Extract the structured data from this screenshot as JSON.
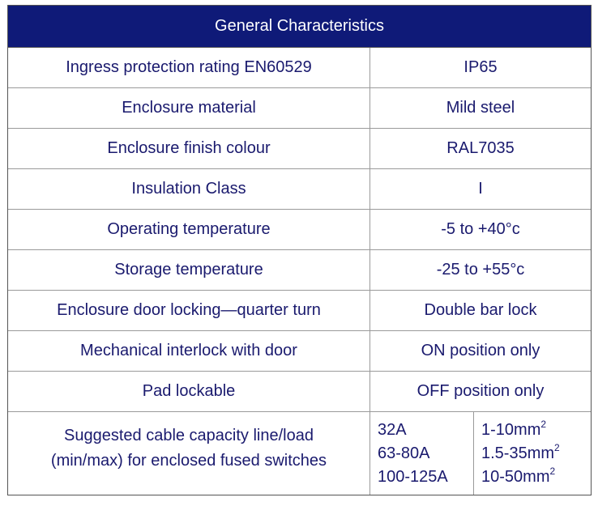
{
  "header": {
    "title": "General Characteristics"
  },
  "rows": [
    {
      "label": "Ingress protection rating EN60529",
      "value": "IP65"
    },
    {
      "label": "Enclosure material",
      "value": "Mild steel"
    },
    {
      "label": "Enclosure finish colour",
      "value": "RAL7035"
    },
    {
      "label": "Insulation Class",
      "value": "I"
    },
    {
      "label": "Operating temperature",
      "value": "-5 to +40°c"
    },
    {
      "label": "Storage temperature",
      "value": "-25 to +55°c"
    },
    {
      "label": "Enclosure door locking—quarter turn",
      "value": "Double bar lock"
    },
    {
      "label": "Mechanical interlock with door",
      "value": "ON position only"
    },
    {
      "label": "Pad lockable",
      "value": "OFF position only"
    }
  ],
  "cable": {
    "label_line1": "Suggested cable capacity line/load",
    "label_line2": "(min/max) for enclosed fused switches",
    "ratings": [
      "32A",
      "63-80A",
      "100-125A"
    ],
    "sizes": [
      "1-10mm",
      "1.5-35mm",
      "10-50mm"
    ],
    "sizes_superscript": "2"
  },
  "colors": {
    "header_bg": "#0f1a78",
    "header_text": "#ffffff",
    "body_text": "#1a1a6e",
    "border": "#9a9a9a"
  }
}
